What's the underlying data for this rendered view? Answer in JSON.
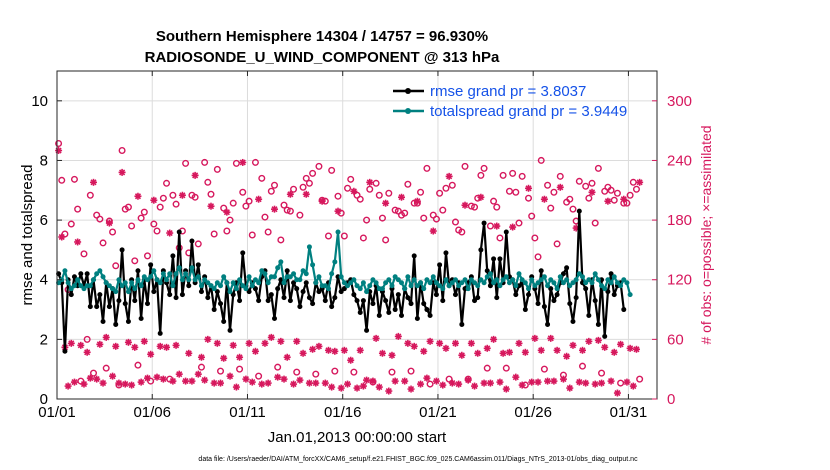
{
  "chart_data": {
    "type": "line",
    "title": "Southern Hemisphere 14304 / 14757 = 96.930%",
    "subtitle": "RADIOSONDE_U_WIND_COMPONENT @ 313 hPa",
    "xlabel": "Jan.01,2013 00:00:00 start",
    "ylabel": "rmse and totalspread",
    "y2label": "# of obs: o=possible; ×=assimilated",
    "xlim": [
      0,
      31.5
    ],
    "ylim": [
      0,
      11
    ],
    "y2lim": [
      0,
      330
    ],
    "xticks": [
      0,
      5,
      10,
      15,
      20,
      25,
      30
    ],
    "xtick_labels": [
      "01/01",
      "01/06",
      "01/11",
      "01/16",
      "01/21",
      "01/26",
      "01/31"
    ],
    "yticks": [
      0,
      2,
      4,
      6,
      8,
      10
    ],
    "y2ticks": [
      0,
      60,
      120,
      180,
      240,
      300
    ],
    "legend_position": "top-right",
    "colors": {
      "rmse": "#000000",
      "spread": "#008080",
      "obs": "#d6185d",
      "legend_text": "#1552e8"
    },
    "series": [
      {
        "name": "rmse grand pr = 3.8037",
        "axis": "left",
        "values": [
          4.2,
          3.9,
          1.6,
          4.0,
          3.5,
          4.1,
          3.8,
          4.2,
          3.8,
          4.2,
          3.1,
          4.0,
          3.1,
          3.5,
          2.6,
          3.9,
          3.1,
          3.7,
          2.5,
          3.3,
          5.0,
          3.2,
          2.6,
          4.0,
          3.3,
          4.3,
          2.7,
          4.0,
          3.2,
          4.5,
          3.6,
          4.0,
          2.2,
          4.3,
          3.9,
          3.5,
          4.8,
          3.4,
          5.6,
          3.5,
          4.3,
          3.8,
          5.3,
          3.9,
          4.5,
          3.6,
          4.1,
          3.4,
          3.8,
          3.0,
          3.6,
          3.2,
          2.6,
          3.9,
          2.3,
          3.5,
          3.9,
          3.3,
          4.9,
          3.8,
          3.6,
          3.9,
          3.7,
          3.3,
          4.1,
          4.3,
          3.3,
          3.5,
          2.7,
          3.7,
          4.0,
          3.4,
          4.3,
          3.3,
          3.9,
          3.7,
          3.1,
          3.6,
          3.9,
          3.4,
          3.2,
          3.9,
          3.6,
          3.7,
          3.3,
          3.9,
          3.1,
          3.4,
          4.1,
          3.6,
          3.7,
          3.9,
          4.0,
          3.5,
          3.3,
          2.9,
          3.3,
          2.3,
          3.6,
          3.2,
          3.8,
          2.8,
          3.6,
          3.3,
          2.9,
          3.7,
          3.0,
          3.5,
          2.8,
          3.7,
          3.4,
          3.2,
          4.8,
          2.7,
          3.9,
          3.2,
          3.0,
          2.8,
          3.9,
          3.5,
          4.5,
          3.3,
          4.9,
          3.8,
          4.0,
          3.5,
          3.9,
          2.5,
          3.7,
          3.9,
          4.1,
          3.3,
          3.4,
          5.0,
          5.9,
          4.3,
          3.8,
          4.7,
          3.4,
          4.7,
          3.9,
          5.6,
          4.1,
          4.0,
          3.5,
          3.8,
          3.9,
          3.0,
          3.5,
          4.1,
          3.7,
          3.2,
          4.3,
          3.1,
          2.5,
          3.7,
          3.3,
          3.5,
          3.9,
          4.2,
          4.4,
          3.2,
          2.6,
          3.4,
          6.3,
          3.9,
          3.7,
          2.8,
          4.0,
          3.3,
          2.5,
          4.0,
          2.1,
          3.6,
          4.2,
          3.5,
          3.8,
          3.9,
          3.0
        ]
      },
      {
        "name": "totalspread grand pr = 3.9449",
        "axis": "left",
        "values": [
          3.9,
          4.0,
          4.3,
          3.9,
          3.7,
          3.8,
          4.0,
          3.8,
          3.7,
          3.8,
          3.8,
          4.0,
          4.2,
          4.3,
          4.1,
          3.9,
          3.8,
          3.7,
          3.6,
          4.0,
          3.8,
          3.9,
          3.6,
          3.9,
          3.7,
          4.0,
          3.8,
          4.1,
          4.0,
          4.1,
          4.3,
          4.0,
          3.9,
          4.2,
          4.0,
          4.2,
          3.8,
          4.2,
          4.4,
          4.0,
          4.2,
          4.0,
          4.4,
          4.0,
          4.1,
          3.8,
          4.0,
          3.9,
          3.8,
          3.7,
          3.9,
          3.8,
          4.1,
          3.9,
          3.6,
          3.9,
          3.7,
          4.0,
          3.8,
          3.7,
          4.1,
          3.8,
          4.0,
          3.9,
          4.3,
          4.2,
          3.9,
          4.1,
          4.1,
          4.4,
          4.6,
          3.9,
          4.1,
          4.1,
          4.2,
          4.0,
          4.0,
          4.3,
          4.2,
          5.1,
          4.5,
          3.9,
          4.1,
          3.8,
          3.8,
          3.7,
          4.2,
          4.6,
          5.6,
          4.1,
          3.9,
          3.8,
          3.9,
          4.0,
          3.8,
          3.7,
          3.9,
          3.6,
          3.8,
          4.0,
          3.9,
          3.7,
          3.7,
          3.9,
          4.0,
          3.8,
          4.1,
          4.0,
          3.9,
          3.7,
          4.1,
          3.8,
          4.0,
          3.8,
          3.9,
          3.7,
          4.0,
          3.9,
          4.1,
          3.9,
          3.8,
          3.7,
          4.0,
          3.8,
          3.9,
          4.0,
          3.8,
          3.9,
          4.0,
          3.7,
          4.0,
          3.9,
          3.8,
          4.0,
          3.9,
          4.1,
          4.2,
          3.9,
          4.0,
          3.8,
          4.0,
          4.1,
          3.9,
          4.0,
          3.8,
          4.2,
          4.0,
          3.9,
          3.7,
          4.0,
          3.8,
          3.9,
          4.0,
          4.1,
          3.8,
          4.0,
          3.9,
          3.7,
          4.1,
          3.9,
          4.0,
          3.8,
          3.9,
          4.0,
          4.2,
          4.1,
          3.9,
          4.0,
          3.9,
          4.2,
          4.0,
          3.8,
          3.7,
          4.0,
          3.9,
          4.1,
          3.9,
          3.8,
          4.0,
          3.9,
          3.5
        ]
      },
      {
        "name": "possible (day cycle)",
        "axis": "right",
        "marker": "o",
        "values": [
          253,
          216,
          162,
          106,
          172,
          217,
          187,
          14,
          142,
          56,
          201,
          22,
          181,
          177,
          153,
          27,
          175,
          164,
          130,
          10,
          246,
          187,
          189,
          170,
          135,
          30,
          178,
          184,
          140,
          14,
          172,
          165,
          189,
          198,
          213,
          16,
          201,
          192,
          148,
          165,
          233,
          143,
          201,
          199,
          152,
          28,
          234,
          214,
          202,
          162,
          227,
          24,
          188,
          165,
          176,
          193,
          233,
          26,
          204,
          190,
          195,
          161,
          234,
          19,
          218,
          179,
          164,
          205,
          211,
          28,
          156,
          191,
          186,
          185,
          207,
          23,
          181,
          209,
          218,
          213,
          223,
          21,
          230,
          196,
          195,
          160,
          226,
          24,
          200,
          183,
          160,
          208,
          217,
          23,
          201,
          197,
          158,
          176,
          207,
          13,
          213,
          201,
          178,
          156,
          203,
          23,
          186,
          185,
          181,
          183,
          212,
          24,
          193,
          193,
          204,
          178,
          228,
          11,
          181,
          177,
          203,
          186,
          208,
          16,
          211,
          174,
          166,
          164,
          230,
          16,
          190,
          189,
          198,
          221,
          228,
          27,
          170,
          195,
          189,
          158,
          221,
          27,
          205,
          223,
          204,
          173,
          220,
          10,
          198,
          180,
          158,
          139,
          236,
          26,
          211,
          188,
          204,
          152,
          220,
          20,
          194,
          197,
          187,
          175,
          215,
          29,
          210,
          198,
          213,
          173,
          228,
          22,
          205,
          209,
          206,
          196,
          203,
          12,
          193,
          193,
          201,
          214,
          207,
          16
        ],
        "day_assimilated": [
          252,
          165,
          52,
          13,
          56,
          17,
          160,
          54,
          15,
          47,
          21,
          220,
          20,
          55,
          16,
          62,
          179,
          23,
          53,
          16,
          230,
          15,
          57,
          14,
          52,
          206,
          17,
          58,
          21,
          45,
          202,
          22,
          53,
          20,
          52,
          169,
          18,
          54,
          25,
          207,
          18,
          46,
          18,
          227,
          25,
          42,
          19,
          60,
          196,
          16,
          56,
          16,
          41,
          190,
          23,
          54,
          12,
          42,
          240,
          20,
          56,
          17,
          48,
          203,
          15,
          56,
          16,
          62,
          193,
          22,
          58,
          20,
          42,
          208,
          15,
          58,
          19,
          46,
          208,
          16,
          50,
          16,
          53,
          201,
          16,
          49,
          12,
          48,
          191,
          11,
          49,
          15,
          39,
          211,
          11,
          49,
          13,
          19,
          220,
          18,
          61,
          12,
          46,
          199,
          8,
          44,
          18,
          63,
          205,
          18,
          56,
          10,
          53,
          201,
          15,
          48,
          21,
          58,
          171,
          18,
          56,
          14,
          51,
          226,
          16,
          56,
          15,
          44,
          197,
          19,
          56,
          13,
          46,
          205,
          16,
          51,
          16,
          60,
          176,
          17,
          46,
          10,
          47,
          175,
          22,
          56,
          14,
          47,
          214,
          17,
          61,
          17,
          49,
          203,
          18,
          61,
          18,
          49,
          215,
          20,
          43,
          11,
          54,
          174,
          17,
          49,
          16,
          58,
          210,
          15,
          59,
          16,
          52,
          201,
          18,
          47,
          6,
          55,
          203,
          17,
          51,
          13,
          50,
          220,
          17,
          56,
          3,
          43
        ]
      }
    ]
  },
  "footer": "data file: /Users/raeder/DAI/ATM_forcXX/CAM6_setup/f.e21.FHIST_BGC.f09_025.CAM6assim.011/Diags_NTrS_2013-01/obs_diag_output.nc"
}
